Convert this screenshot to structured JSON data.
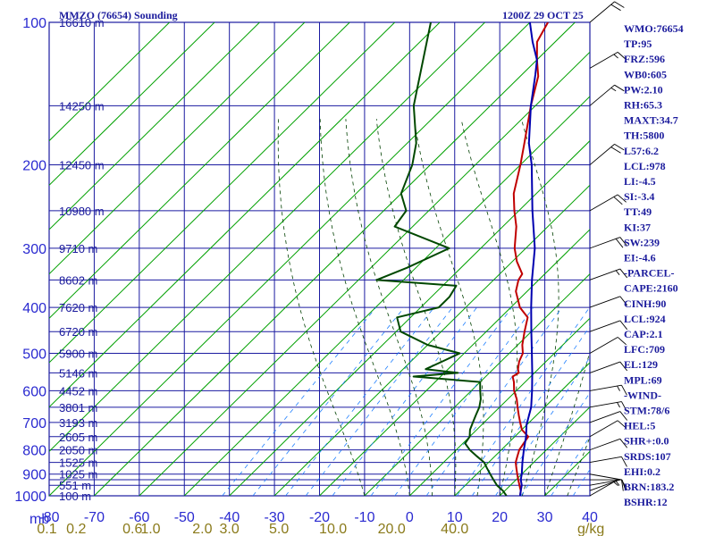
{
  "chart_data": {
    "type": "skew-t",
    "title_left": "MMZO (76654) Sounding",
    "title_right": "1200Z 29 OCT 25",
    "pressure_axis_unit": "mb",
    "pressure_levels": [
      100,
      200,
      300,
      400,
      500,
      600,
      700,
      800,
      900,
      1000
    ],
    "grid_pressures": [
      100,
      150,
      200,
      250,
      300,
      350,
      400,
      450,
      500,
      550,
      600,
      650,
      700,
      750,
      800,
      850,
      900,
      925,
      950,
      1000
    ],
    "temperature_ticks": [
      -80,
      -70,
      -60,
      -50,
      -40,
      -30,
      -20,
      -10,
      0,
      10,
      20,
      30,
      40
    ],
    "temperature_range": [
      -80,
      40
    ],
    "pressure_range": [
      100,
      1000
    ],
    "mixing_ratio_unit": "g/kg",
    "mixing_ratio_labels": [
      {
        "text": "0.1",
        "t": -80.5
      },
      {
        "text": "0.2",
        "t": -74
      },
      {
        "text": "0.6",
        "t": -61.5
      },
      {
        "text": "1.0",
        "t": -57.5
      },
      {
        "text": "2.0",
        "t": -46
      },
      {
        "text": "3.0",
        "t": -40
      },
      {
        "text": "5.0",
        "t": -29
      },
      {
        "text": "10.0",
        "t": -17
      },
      {
        "text": "20.0",
        "t": -4
      },
      {
        "text": "40.0",
        "t": 10
      }
    ],
    "height_labels": [
      {
        "p": 100,
        "text": "16610 m"
      },
      {
        "p": 150,
        "text": "14250 m"
      },
      {
        "p": 200,
        "text": "12450 m"
      },
      {
        "p": 250,
        "text": "10980 m"
      },
      {
        "p": 300,
        "text": "9710 m"
      },
      {
        "p": 350,
        "text": "8602 m"
      },
      {
        "p": 400,
        "text": "7620 m"
      },
      {
        "p": 450,
        "text": "6720 m"
      },
      {
        "p": 500,
        "text": "5900 m"
      },
      {
        "p": 550,
        "text": "5146 m"
      },
      {
        "p": 600,
        "text": "4452 m"
      },
      {
        "p": 650,
        "text": "3801 m"
      },
      {
        "p": 700,
        "text": "3193 m"
      },
      {
        "p": 750,
        "text": "2605 m"
      },
      {
        "p": 800,
        "text": "2050 m"
      },
      {
        "p": 850,
        "text": "1525 m"
      },
      {
        "p": 900,
        "text": "1025 m"
      },
      {
        "p": 950,
        "text": "551 m"
      },
      {
        "p": 1000,
        "text": "100 m"
      }
    ],
    "series": [
      {
        "name": "temperature",
        "color": "#c00000",
        "points": [
          [
            1000,
            24.5
          ],
          [
            975,
            23.5
          ],
          [
            950,
            22
          ],
          [
            925,
            20.5
          ],
          [
            900,
            19
          ],
          [
            875,
            17.5
          ],
          [
            850,
            16
          ],
          [
            825,
            15
          ],
          [
            800,
            14
          ],
          [
            775,
            13.5
          ],
          [
            750,
            13
          ],
          [
            725,
            10
          ],
          [
            700,
            8
          ],
          [
            675,
            6
          ],
          [
            650,
            4
          ],
          [
            625,
            2
          ],
          [
            600,
            -0.5
          ],
          [
            575,
            -2.5
          ],
          [
            560,
            -4
          ],
          [
            550,
            -3.5
          ],
          [
            540,
            -4.5
          ],
          [
            520,
            -6
          ],
          [
            500,
            -7
          ],
          [
            480,
            -9
          ],
          [
            450,
            -11.5
          ],
          [
            420,
            -14
          ],
          [
            400,
            -18
          ],
          [
            370,
            -22.5
          ],
          [
            350,
            -24.5
          ],
          [
            340,
            -25
          ],
          [
            320,
            -29
          ],
          [
            300,
            -32.5
          ],
          [
            270,
            -37
          ],
          [
            250,
            -41
          ],
          [
            230,
            -45
          ],
          [
            200,
            -50
          ],
          [
            180,
            -54
          ],
          [
            150,
            -61
          ],
          [
            130,
            -66
          ],
          [
            120,
            -70
          ],
          [
            110,
            -74
          ],
          [
            100,
            -76
          ]
        ]
      },
      {
        "name": "dewpoint",
        "color": "#004800",
        "points": [
          [
            1000,
            21.5
          ],
          [
            975,
            19.5
          ],
          [
            950,
            17
          ],
          [
            925,
            15
          ],
          [
            900,
            13
          ],
          [
            875,
            11
          ],
          [
            850,
            9
          ],
          [
            825,
            6
          ],
          [
            800,
            3
          ],
          [
            775,
            0.5
          ],
          [
            750,
            0
          ],
          [
            725,
            -1.5
          ],
          [
            700,
            -2.5
          ],
          [
            675,
            -3.5
          ],
          [
            650,
            -4.5
          ],
          [
            625,
            -6
          ],
          [
            600,
            -8
          ],
          [
            575,
            -10
          ],
          [
            560,
            -26
          ],
          [
            550,
            -17
          ],
          [
            540,
            -25
          ],
          [
            520,
            -23
          ],
          [
            500,
            -21
          ],
          [
            480,
            -30
          ],
          [
            450,
            -39
          ],
          [
            420,
            -43
          ],
          [
            400,
            -36
          ],
          [
            380,
            -36
          ],
          [
            360,
            -37
          ],
          [
            350,
            -56
          ],
          [
            330,
            -52
          ],
          [
            300,
            -47
          ],
          [
            270,
            -64
          ],
          [
            250,
            -65
          ],
          [
            230,
            -70
          ],
          [
            200,
            -74
          ],
          [
            180,
            -78
          ],
          [
            150,
            -87
          ],
          [
            100,
            -102
          ]
        ]
      },
      {
        "name": "parcel",
        "color": "#0000b0",
        "points": [
          [
            1000,
            24.5
          ],
          [
            975,
            23.5
          ],
          [
            950,
            22.5
          ],
          [
            924,
            21
          ],
          [
            900,
            20
          ],
          [
            850,
            17.5
          ],
          [
            800,
            15
          ],
          [
            750,
            12.5
          ],
          [
            709,
            10
          ],
          [
            650,
            7
          ],
          [
            600,
            3.5
          ],
          [
            550,
            -0.5
          ],
          [
            500,
            -5
          ],
          [
            450,
            -10
          ],
          [
            400,
            -15.5
          ],
          [
            350,
            -21.5
          ],
          [
            300,
            -28
          ],
          [
            250,
            -37
          ],
          [
            200,
            -47.5
          ],
          [
            180,
            -53
          ],
          [
            150,
            -61
          ],
          [
            129,
            -67
          ],
          [
            120,
            -70
          ],
          [
            110,
            -75
          ],
          [
            100,
            -80
          ]
        ]
      }
    ],
    "wind_barbs": [
      {
        "p": 1000,
        "dir": 240,
        "spd": 5
      },
      {
        "p": 975,
        "dir": 250,
        "spd": 5
      },
      {
        "p": 950,
        "dir": 260,
        "spd": 10
      },
      {
        "p": 925,
        "dir": 270,
        "spd": 10
      },
      {
        "p": 900,
        "dir": 280,
        "spd": 10
      },
      {
        "p": 850,
        "dir": 260,
        "spd": 10
      },
      {
        "p": 800,
        "dir": 250,
        "spd": 10
      },
      {
        "p": 750,
        "dir": 240,
        "spd": 10
      },
      {
        "p": 700,
        "dir": 250,
        "spd": 10
      },
      {
        "p": 650,
        "dir": 260,
        "spd": 15
      },
      {
        "p": 600,
        "dir": 260,
        "spd": 15
      },
      {
        "p": 550,
        "dir": 250,
        "spd": 10
      },
      {
        "p": 500,
        "dir": 240,
        "spd": 10
      },
      {
        "p": 450,
        "dir": 250,
        "spd": 10
      },
      {
        "p": 400,
        "dir": 250,
        "spd": 10
      },
      {
        "p": 350,
        "dir": 250,
        "spd": 15
      },
      {
        "p": 300,
        "dir": 250,
        "spd": 20
      },
      {
        "p": 250,
        "dir": 240,
        "spd": 20
      },
      {
        "p": 200,
        "dir": 230,
        "spd": 20
      },
      {
        "p": 150,
        "dir": 230,
        "spd": 15
      },
      {
        "p": 125,
        "dir": 240,
        "spd": 15
      },
      {
        "p": 100,
        "dir": 230,
        "spd": 20
      }
    ],
    "indices": [
      "WMO:76654",
      "TP:95",
      "FRZ:596",
      "WB0:605",
      "PW:2.10",
      "RH:65.3",
      "MAXT:34.7",
      "TH:5800",
      "L57:6.2",
      "LCL:978",
      "LI:-4.5",
      "SI:-3.4",
      "TT:49",
      "KI:37",
      "SW:239",
      "EI:-4.6",
      "-PARCEL-",
      "CAPE:2160",
      "CINH:90",
      "LCL:924",
      "CAP:2.1",
      "LFC:709",
      "EL:129",
      "MPL:69",
      "-WIND-",
      "STM:78/6",
      "HEL:5",
      "SHR+:0.0",
      "SRDS:107",
      "EHI:0.2",
      "BRN:183.2",
      "BSHR:12"
    ]
  },
  "colors": {
    "grid": "#1a1aa0",
    "dry_adiabat": "#00a000",
    "moist_adiabat": "#004000",
    "mixing_ratio": "#2080ff",
    "temperature": "#c00000",
    "dewpoint": "#004800",
    "parcel": "#0000b0",
    "label": "#2a2ad0",
    "mixing_label": "#8a7a1a",
    "text": "#1a1a9c"
  }
}
